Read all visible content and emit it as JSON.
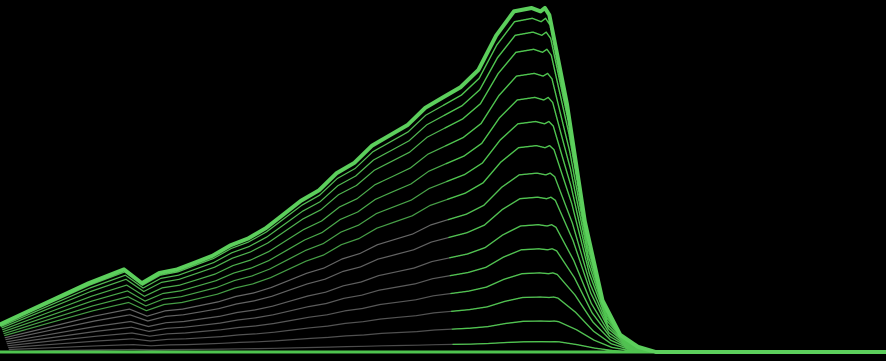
{
  "chart_data": {
    "type": "line",
    "title": "",
    "xlabel": "",
    "ylabel": "",
    "grid": false,
    "legend": "none",
    "colors": {
      "background": "#000000",
      "front": "#5ccf5c",
      "back": "#8a8a8a",
      "baseline": "#4fc44f"
    },
    "xlim": [
      0,
      1
    ],
    "ylim": [
      0,
      1
    ],
    "x": [
      0.0,
      0.05,
      0.1,
      0.14,
      0.16,
      0.18,
      0.2,
      0.22,
      0.24,
      0.26,
      0.28,
      0.3,
      0.32,
      0.34,
      0.36,
      0.38,
      0.4,
      0.42,
      0.44,
      0.46,
      0.48,
      0.5,
      0.52,
      0.54,
      0.56,
      0.58,
      0.6,
      0.61,
      0.615,
      0.62,
      0.64,
      0.66,
      0.68,
      0.7,
      0.72,
      0.74,
      0.76,
      0.8,
      0.9,
      1.0
    ],
    "profile": [
      0.08,
      0.14,
      0.2,
      0.24,
      0.2,
      0.23,
      0.24,
      0.26,
      0.28,
      0.31,
      0.33,
      0.36,
      0.4,
      0.44,
      0.47,
      0.52,
      0.55,
      0.6,
      0.63,
      0.66,
      0.71,
      0.74,
      0.77,
      0.82,
      0.92,
      0.99,
      1.0,
      0.99,
      1.0,
      0.98,
      0.72,
      0.38,
      0.15,
      0.05,
      0.015,
      0.0,
      0.0,
      0.0,
      0.0,
      0.0
    ],
    "series_scales": [
      0.03,
      0.09,
      0.16,
      0.23,
      0.3,
      0.37,
      0.45,
      0.52,
      0.6,
      0.67,
      0.74,
      0.81,
      0.88,
      0.93,
      0.97,
      1.0
    ],
    "front_scale": 1.0
  }
}
